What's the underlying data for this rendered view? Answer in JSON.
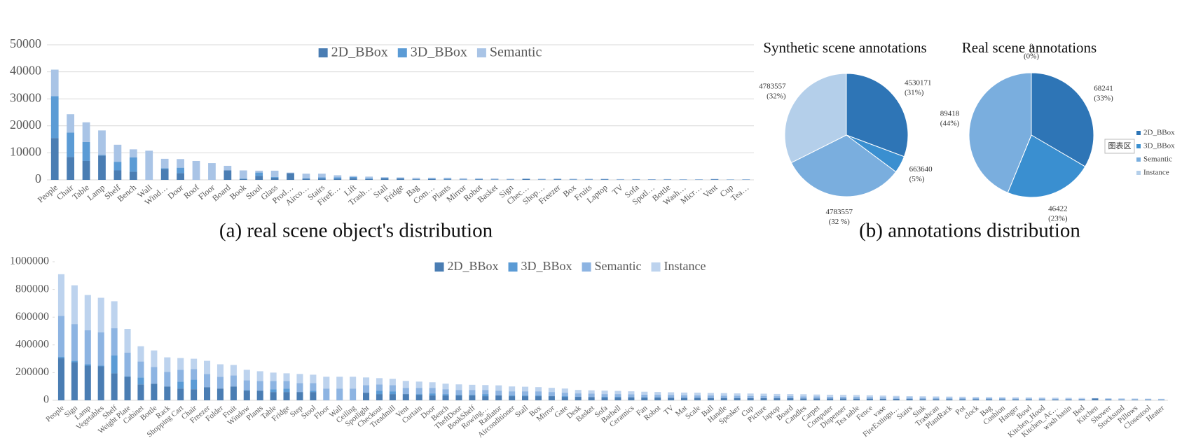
{
  "captions": [
    "(a) real scene object's distribution",
    "(b) annotations distribution"
  ],
  "tooltip": "图表区",
  "chart_data": [
    {
      "type": "bar",
      "stacked": true,
      "legend": "top",
      "grid": true,
      "categories": [
        "People",
        "Chair",
        "Table",
        "Lamp",
        "Shelf",
        "Bench",
        "Wall",
        "Wind…",
        "Door",
        "Roof",
        "Floor",
        "Board",
        "Book",
        "Stool",
        "Glass",
        "Prod…",
        "Airco…",
        "Stairs",
        "FireE…",
        "Lift",
        "Trash…",
        "Stall",
        "Fridge",
        "Bag",
        "Com…",
        "Plants",
        "Mirror",
        "Robot",
        "Basket",
        "Sign",
        "Chec…",
        "Shop…",
        "Freezer",
        "Box",
        "Fruits",
        "Laptop",
        "TV",
        "Sofa",
        "Spotl…",
        "Bottle",
        "Wash…",
        "Micr…",
        "Vent",
        "Cup",
        "Tea…"
      ],
      "series": [
        {
          "name": "2D_BBox",
          "color": "#4a7db3",
          "values": [
            15500,
            8500,
            7000,
            9000,
            3500,
            3000,
            0,
            4000,
            2500,
            0,
            0,
            3500,
            300,
            1500,
            800,
            2500,
            400,
            500,
            400,
            700,
            300,
            600,
            500,
            200,
            300,
            200,
            100,
            200,
            100,
            100,
            300,
            100,
            200,
            100,
            100,
            200,
            50,
            100,
            100,
            100,
            50,
            50,
            200,
            50,
            50
          ]
        },
        {
          "name": "3D_BBox",
          "color": "#5b9bd5",
          "values": [
            15500,
            9000,
            7000,
            200,
            3200,
            5300,
            0,
            300,
            2000,
            0,
            0,
            0,
            200,
            1200,
            300,
            0,
            200,
            400,
            500,
            400,
            300,
            200,
            200,
            100,
            200,
            200,
            100,
            100,
            100,
            50,
            100,
            100,
            100,
            100,
            100,
            50,
            50,
            50,
            50,
            50,
            50,
            50,
            50,
            50,
            50
          ]
        },
        {
          "name": "Semantic",
          "color": "#a9c4e6",
          "values": [
            9800,
            6800,
            7300,
            9100,
            6300,
            3000,
            10800,
            3500,
            3200,
            7000,
            6200,
            1700,
            3000,
            700,
            2300,
            200,
            1700,
            1400,
            800,
            300,
            600,
            200,
            200,
            500,
            300,
            400,
            400,
            300,
            300,
            250,
            100,
            200,
            200,
            200,
            200,
            150,
            200,
            150,
            100,
            150,
            150,
            150,
            100,
            100,
            150
          ]
        }
      ],
      "ylim": [
        0,
        50000
      ],
      "yticks": [
        0,
        10000,
        20000,
        30000,
        40000,
        50000
      ]
    },
    {
      "type": "pie",
      "title": "Synthetic scene annotations",
      "values": [
        4530171,
        663640,
        4783557,
        4783557
      ],
      "colors": [
        "#2e75b6",
        "#3a8fd0",
        "#7aaede",
        "#b4cfea"
      ],
      "percent_labels": [
        "(31%)",
        "(5%)",
        "(32 %)",
        "(32%)"
      ]
    },
    {
      "type": "pie",
      "title": "Real scene annotations",
      "legend": "right",
      "categories": [
        "2D_BBox",
        "3D_BBox",
        "Semantic",
        "Instance"
      ],
      "values": [
        68241,
        46422,
        89418,
        0
      ],
      "colors": [
        "#2e75b6",
        "#3a8fd0",
        "#7aaede",
        "#b4cfea"
      ],
      "percent_labels": [
        "(33%)",
        "(23%)",
        "(44%)",
        "(0%)"
      ]
    },
    {
      "type": "bar",
      "stacked": true,
      "legend": "top",
      "grid": false,
      "categories": [
        "People",
        "Sign",
        "Lamp",
        "Vegetables",
        "Shelf",
        "Weight Plate",
        "Cabinet",
        "Bottle",
        "Rack",
        "Shopping Cart",
        "Chair",
        "Freezer",
        "Folder",
        "Fruit",
        "Window",
        "Plants",
        "Table",
        "Fridge",
        "Step",
        "Stool",
        "Floor",
        "Wall",
        "Ceiling",
        "Spotlight",
        "Checkout",
        "Treadmill",
        "Vent",
        "Curtain",
        "Door",
        "Bench",
        "TheftDoor",
        "BookShelf",
        "Rowing…",
        "Radiator",
        "Airconditioner",
        "Stall",
        "Box",
        "Mirror",
        "Gate",
        "Desk",
        "Basket",
        "Sofa",
        "Barbell",
        "Ceramics",
        "Fan",
        "Robot",
        "TV",
        "Mat",
        "Scale",
        "Ball",
        "Handle",
        "Speaker",
        "Cup",
        "Picture",
        "laptop",
        "Board",
        "Candles",
        "Carpet",
        "Computer",
        "Dispenser",
        "Tea table",
        "Fence",
        "vase",
        "FireExtingu…",
        "Stairs",
        "Sink",
        "Trashcan",
        "PlantRack",
        "Pot",
        "clock",
        "Bag",
        "Cushion",
        "Hanger",
        "Bowl",
        "Kitchen_Hood",
        "Kitchen_Ac…",
        "wash basin",
        "Bed",
        "Kitchen",
        "Shower",
        "Stocksund",
        "Pillows",
        "Closestool",
        "Heater"
      ],
      "series": [
        {
          "name": "2D_BBox",
          "color": "#4a7db3",
          "values": [
            305000,
            275000,
            250000,
            245000,
            195000,
            170000,
            115000,
            120000,
            100000,
            85000,
            80000,
            95000,
            85000,
            100000,
            70000,
            70000,
            60000,
            60000,
            60000,
            60000,
            0,
            0,
            0,
            55000,
            45000,
            45000,
            45000,
            40000,
            35000,
            35000,
            35000,
            35000,
            30000,
            35000,
            30000,
            30000,
            30000,
            30000,
            25000,
            25000,
            24000,
            20000,
            20000,
            22000,
            20000,
            20000,
            19000,
            18000,
            18000,
            17000,
            17000,
            16000,
            16000,
            16000,
            15000,
            15000,
            14000,
            14000,
            13000,
            13000,
            12000,
            12000,
            11000,
            10000,
            10000,
            9000,
            9000,
            9000,
            8000,
            8000,
            8000,
            7000,
            7000,
            7000,
            6000,
            6000,
            6000,
            5000,
            14000,
            5000,
            4000,
            4000,
            4000,
            3000
          ]
        },
        {
          "name": "3D_BBox",
          "color": "#5b9bd5",
          "values": [
            10000,
            10000,
            10000,
            5000,
            130000,
            5000,
            50000,
            0,
            0,
            50000,
            70000,
            0,
            0,
            0,
            5000,
            0,
            20000,
            25000,
            0,
            10000,
            0,
            0,
            0,
            0,
            25000,
            20000,
            0,
            5000,
            15000,
            10000,
            5000,
            5000,
            15000,
            0,
            5000,
            5000,
            5000,
            0,
            5000,
            0,
            0,
            5000,
            5000,
            0,
            0,
            0,
            0,
            0,
            0,
            0,
            0,
            2000,
            0,
            0,
            0,
            0,
            0,
            0,
            0,
            0,
            0,
            0,
            0,
            1000,
            0,
            0,
            0,
            0,
            0,
            0,
            0,
            0,
            0,
            0,
            0,
            0,
            0,
            0,
            0,
            0,
            0,
            0,
            0,
            0
          ]
        },
        {
          "name": "Semantic",
          "color": "#8db4e2",
          "values": [
            295000,
            265000,
            245000,
            240000,
            195000,
            170000,
            115000,
            120000,
            105000,
            85000,
            75000,
            95000,
            85000,
            80000,
            70000,
            70000,
            60000,
            55000,
            65000,
            55000,
            85000,
            85000,
            85000,
            55000,
            45000,
            45000,
            45000,
            45000,
            40000,
            35000,
            35000,
            35000,
            30000,
            35000,
            30000,
            30000,
            30000,
            30000,
            25000,
            25000,
            24000,
            20000,
            20000,
            21000,
            21000,
            20000,
            19000,
            19000,
            18000,
            18000,
            17000,
            16000,
            16000,
            16000,
            15000,
            15000,
            15000,
            14000,
            13000,
            13000,
            13000,
            12000,
            11000,
            10000,
            10000,
            10000,
            9000,
            9000,
            9000,
            8000,
            8000,
            8000,
            7000,
            7000,
            7000,
            6000,
            6000,
            6000,
            1000,
            5000,
            5000,
            4000,
            4000,
            4000
          ]
        },
        {
          "name": "Instance",
          "color": "#bdd3ee",
          "values": [
            300000,
            280000,
            255000,
            250000,
            195000,
            170000,
            110000,
            120000,
            105000,
            85000,
            75000,
            95000,
            90000,
            75000,
            75000,
            70000,
            60000,
            55000,
            65000,
            60000,
            85000,
            85000,
            85000,
            55000,
            45000,
            45000,
            50000,
            45000,
            40000,
            40000,
            40000,
            37000,
            35000,
            38000,
            35000,
            33000,
            30000,
            30000,
            30000,
            25000,
            24000,
            25000,
            23000,
            22000,
            21000,
            20000,
            20000,
            19000,
            19000,
            18000,
            18000,
            16000,
            17000,
            16000,
            16000,
            15000,
            15000,
            14000,
            14000,
            13000,
            13000,
            12000,
            12000,
            11000,
            10000,
            10000,
            10000,
            9000,
            9000,
            9000,
            8000,
            8000,
            8000,
            7000,
            7000,
            7000,
            6000,
            6000,
            1000,
            5000,
            5000,
            5000,
            4000,
            4000
          ]
        }
      ],
      "ylim": [
        0,
        1000000
      ],
      "yticks": [
        0,
        200000,
        400000,
        600000,
        800000,
        1000000
      ]
    }
  ]
}
